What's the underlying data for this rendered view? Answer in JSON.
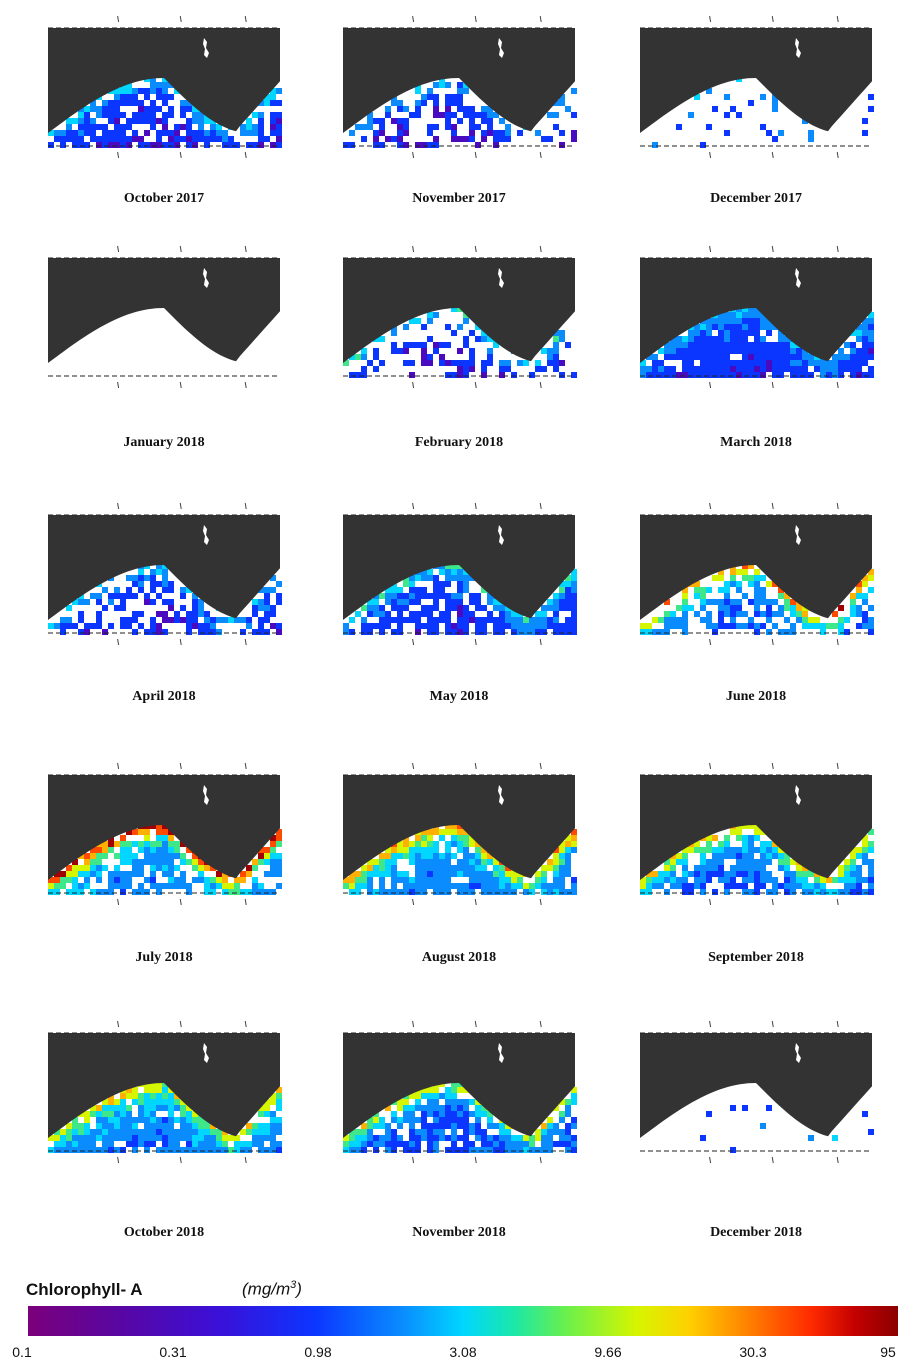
{
  "figure": {
    "panels": [
      {
        "label": "October 2017"
      },
      {
        "label": "November 2017"
      },
      {
        "label": "December 2017"
      },
      {
        "label": "January 2018"
      },
      {
        "label": "February 2018"
      },
      {
        "label": "March 2018"
      },
      {
        "label": "April 2018"
      },
      {
        "label": "May 2018"
      },
      {
        "label": "June 2018"
      },
      {
        "label": "July 2018"
      },
      {
        "label": "August 2018"
      },
      {
        "label": "September 2018"
      },
      {
        "label": "October 2018"
      },
      {
        "label": "November 2018"
      },
      {
        "label": "December 2018"
      }
    ]
  },
  "colorbar": {
    "title": "Chlorophyll- A",
    "unit_base": "(mg/m",
    "unit_exp": "3",
    "unit_close": ")",
    "ticks": [
      "0.1",
      "0.31",
      "0.98",
      "3.08",
      "9.66",
      "30.3",
      "95"
    ],
    "scale": "log",
    "range": [
      0.1,
      95
    ]
  },
  "colors": {
    "land": "#333333",
    "no_data": "#ffffff",
    "low": "#7b007b",
    "high": "#8b0000"
  }
}
